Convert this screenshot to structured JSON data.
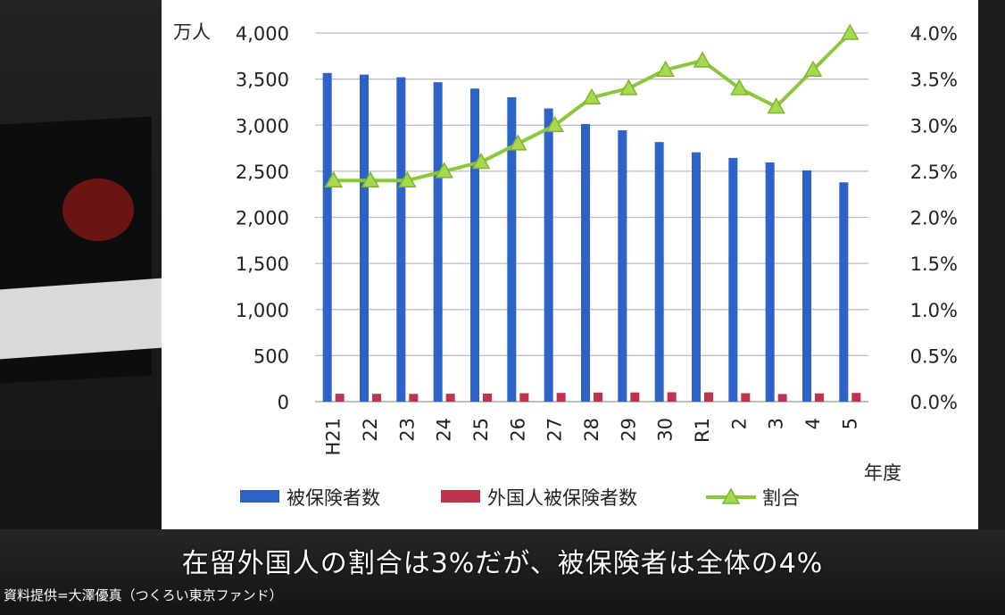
{
  "overlay": {
    "subtitle": "在留外国人の割合は3%だが、被保険者は全体の4%",
    "credit": "資料提供=大澤優真（つくろい東京ファンド）"
  },
  "chart_data": {
    "type": "bar",
    "unit_left": "万人",
    "xlabel": "年度",
    "categories": [
      "H21",
      "22",
      "23",
      "24",
      "25",
      "26",
      "27",
      "28",
      "29",
      "30",
      "R1",
      "2",
      "3",
      "4",
      "5"
    ],
    "y_left": {
      "min": 0,
      "max": 4000,
      "ticks": [
        "0",
        "500",
        "1,000",
        "1,500",
        "2,000",
        "2,500",
        "3,000",
        "3,500",
        "4,000"
      ]
    },
    "y_right": {
      "min": 0,
      "max": 4.0,
      "ticks": [
        "0.0%",
        "0.5%",
        "1.0%",
        "1.5%",
        "2.0%",
        "2.5%",
        "3.0%",
        "3.5%",
        "4.0%"
      ]
    },
    "grid": true,
    "legend_position": "bottom",
    "series": [
      {
        "name": "被保険者数",
        "type": "bar",
        "axis": "left",
        "color": "#2e62c9",
        "values": [
          3566,
          3549,
          3520,
          3466,
          3397,
          3303,
          3182,
          3013,
          2945,
          2817,
          2706,
          2645,
          2596,
          2510,
          2380
        ]
      },
      {
        "name": "外国人被保険者数",
        "type": "bar",
        "axis": "left",
        "color": "#c0334f",
        "values": [
          86,
          85,
          84,
          86,
          88,
          92,
          95,
          99,
          100,
          102,
          101,
          92,
          83,
          90,
          95
        ]
      },
      {
        "name": "割合",
        "type": "line",
        "axis": "right",
        "color": "#8cc63f",
        "marker": "triangle",
        "values": [
          2.4,
          2.4,
          2.4,
          2.5,
          2.6,
          2.8,
          3.0,
          3.3,
          3.4,
          3.6,
          3.7,
          3.4,
          3.2,
          3.6,
          4.0
        ]
      }
    ]
  }
}
